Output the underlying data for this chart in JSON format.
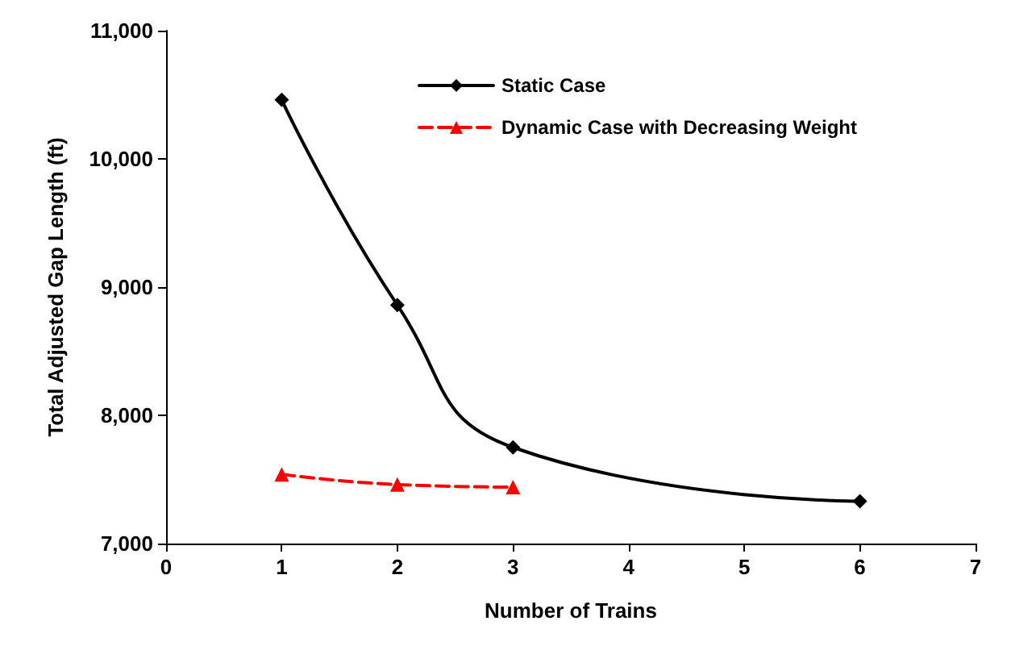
{
  "chart_data": {
    "type": "line",
    "xlabel": "Number of Trains",
    "ylabel": "Total Adjusted Gap Length (ft)",
    "xlim": [
      0,
      7
    ],
    "xticks": [
      0,
      1,
      2,
      3,
      4,
      5,
      6,
      7
    ],
    "ylim": [
      7000,
      11000
    ],
    "yticks": [
      {
        "value": 7000,
        "label": "7,000"
      },
      {
        "value": 8000,
        "label": "8,000"
      },
      {
        "value": 9000,
        "label": "9,000"
      },
      {
        "value": 10000,
        "label": "10,000"
      },
      {
        "value": 11000,
        "label": "11,000"
      }
    ],
    "grid": false,
    "legend": "top right",
    "series": [
      {
        "name": "Static Case",
        "color": "#000000",
        "x": [
          1,
          2,
          3,
          6
        ],
        "values": [
          10460,
          8860,
          7750,
          7330
        ],
        "marker": "diamond",
        "line_style": "solid"
      },
      {
        "name": "Dynamic Case with Decreasing Weight",
        "color": "#ff0000",
        "x": [
          1,
          2,
          3
        ],
        "values": [
          7540,
          7460,
          7440
        ],
        "marker": "triangle",
        "line_style": "dashed"
      }
    ]
  }
}
